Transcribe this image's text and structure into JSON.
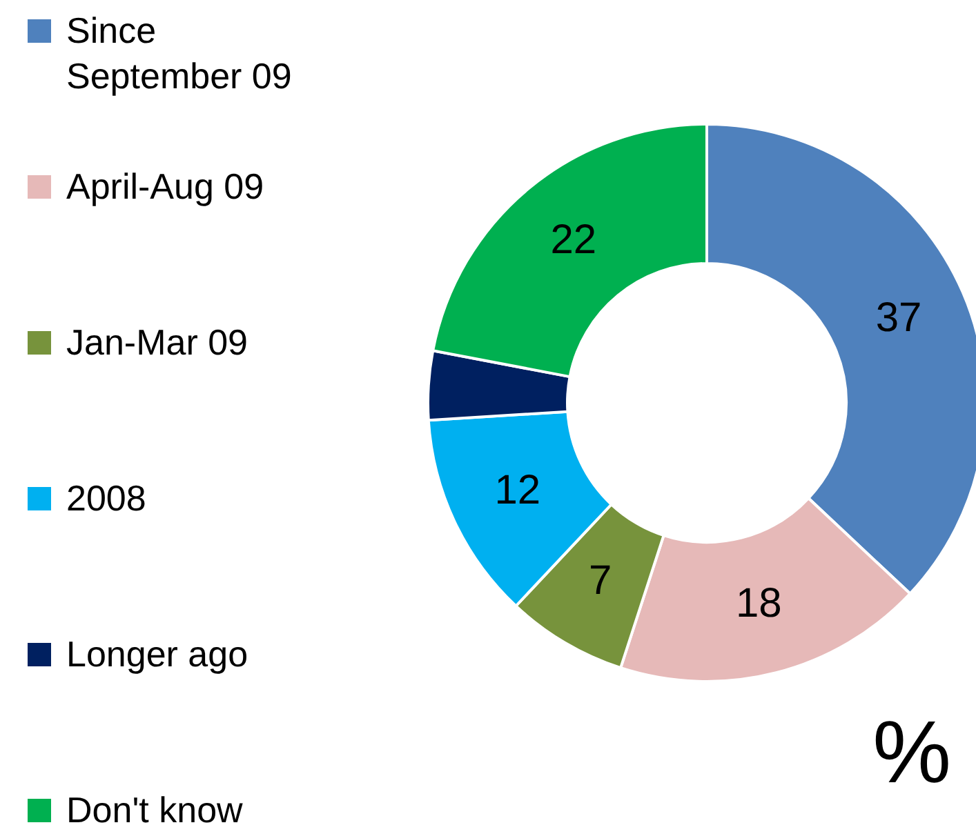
{
  "chart_data": {
    "type": "donut",
    "categories": [
      "Since September 09",
      "April-Aug 09",
      "Jan-Mar 09",
      "2008",
      "Longer ago",
      "Don't know"
    ],
    "values": [
      37,
      18,
      7,
      12,
      4,
      22
    ],
    "value_labels": [
      "37",
      "18",
      "7",
      "12",
      null,
      "22"
    ],
    "colors": [
      "#4f81bd",
      "#e6b9b8",
      "#77933c",
      "#00b0f0",
      "#002060",
      "#00b050"
    ],
    "legend": "left",
    "annotations": [
      "%"
    ]
  }
}
